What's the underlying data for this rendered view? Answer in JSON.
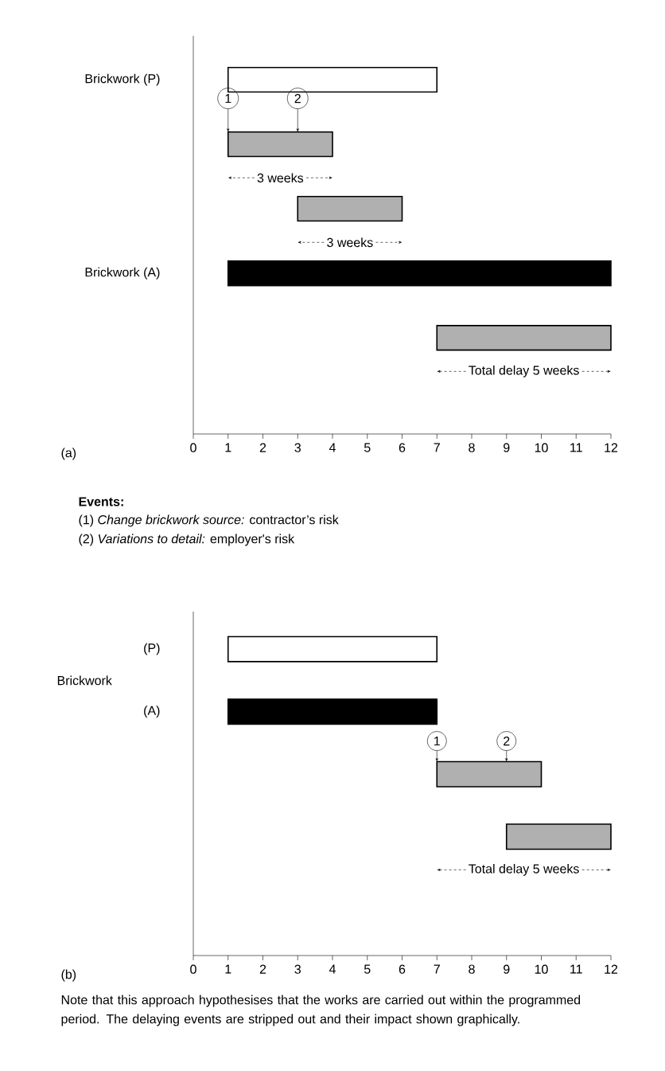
{
  "chart_data": [
    {
      "type": "bar",
      "orientation": "horizontal",
      "title": "(a)",
      "categories": [
        "Brickwork  (P)",
        null,
        null,
        "Brickwork  (A)",
        null
      ],
      "base": [
        1,
        1,
        3,
        1,
        7
      ],
      "values": [
        6,
        3,
        3,
        11,
        5
      ],
      "colors": [
        "#ffffff",
        "#b0b0b0",
        "#b0b0b0",
        "#000000",
        "#b0b0b0"
      ],
      "xlim": [
        0,
        12
      ],
      "xticks": [
        0,
        1,
        2,
        3,
        4,
        5,
        6,
        7,
        8,
        9,
        10,
        11,
        12
      ],
      "annotations": [
        {
          "text": "1",
          "x": 1
        },
        {
          "text": "2",
          "x": 3
        },
        "3 weeks",
        "3 weeks",
        "Total delay 5 weeks",
        "Events:",
        "(1)  *Change brickwork source:* contractor’s risk",
        "(2)  *Variations to detail:* employer's risk"
      ]
    },
    {
      "type": "bar",
      "orientation": "horizontal",
      "title": "(b)",
      "ylabel": "Brickwork",
      "categories": [
        "(P)",
        "(A)",
        null,
        null
      ],
      "base": [
        1,
        1,
        7,
        9
      ],
      "values": [
        6,
        6,
        3,
        3
      ],
      "colors": [
        "#ffffff",
        "#000000",
        "#b0b0b0",
        "#b0b0b0"
      ],
      "xlim": [
        0,
        12
      ],
      "xticks": [
        0,
        1,
        2,
        3,
        4,
        5,
        6,
        7,
        8,
        9,
        10,
        11,
        12
      ],
      "annotations": [
        {
          "text": "1",
          "x": 7
        },
        {
          "text": "2",
          "x": 9
        },
        "Total delay 5 weeks",
        "Note that this approach hypothesises that the works are carried out within the programmed period. The delaying events are stripped out and their impact shown graphically."
      ]
    }
  ]
}
